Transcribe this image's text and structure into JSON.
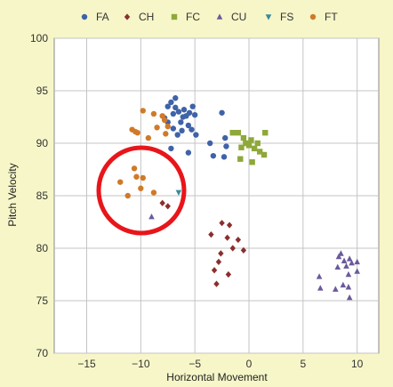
{
  "chart_data": {
    "type": "scatter",
    "title": "",
    "xlabel": "Horizontal Movement",
    "ylabel": "Pitch Velocity",
    "xlim": [
      -18,
      12
    ],
    "ylim": [
      70,
      100
    ],
    "xticks": [
      -15,
      -10,
      -5,
      0,
      5,
      10
    ],
    "yticks": [
      70,
      75,
      80,
      85,
      90,
      95,
      100
    ],
    "grid": true,
    "legend_position": "top",
    "series": [
      {
        "name": "FA",
        "marker": "circle",
        "color": "#3f62a8",
        "points": [
          [
            -7.5,
            93.5
          ],
          [
            -7.2,
            93.9
          ],
          [
            -7.0,
            92.8
          ],
          [
            -6.8,
            94.3
          ],
          [
            -6.5,
            93.0
          ],
          [
            -6.3,
            92.0
          ],
          [
            -6.0,
            93.2
          ],
          [
            -5.8,
            92.6
          ],
          [
            -5.5,
            92.9
          ],
          [
            -5.2,
            93.5
          ],
          [
            -5.0,
            92.7
          ],
          [
            -7.8,
            92.4
          ],
          [
            -7.5,
            92.0
          ],
          [
            -7.0,
            91.4
          ],
          [
            -6.2,
            91.2
          ],
          [
            -5.6,
            91.7
          ],
          [
            -5.3,
            91.3
          ],
          [
            -6.6,
            90.8
          ],
          [
            -7.2,
            89.5
          ],
          [
            -5.6,
            89.1
          ],
          [
            -2.5,
            92.9
          ],
          [
            -2.2,
            90.5
          ],
          [
            -2.1,
            89.7
          ],
          [
            -2.3,
            88.7
          ],
          [
            -3.3,
            88.8
          ],
          [
            -3.6,
            90.0
          ],
          [
            -4.9,
            90.8
          ],
          [
            -6.8,
            93.4
          ],
          [
            -6.1,
            92.5
          ]
        ]
      },
      {
        "name": "CH",
        "marker": "diamond",
        "color": "#8b2e2e",
        "points": [
          [
            -8.0,
            84.3
          ],
          [
            -7.5,
            84.0
          ],
          [
            -2.5,
            82.4
          ],
          [
            -1.8,
            82.2
          ],
          [
            -2.0,
            81.0
          ],
          [
            -3.5,
            81.3
          ],
          [
            -1.5,
            80.0
          ],
          [
            -1.0,
            80.8
          ],
          [
            -0.5,
            79.8
          ],
          [
            -2.8,
            78.7
          ],
          [
            -3.2,
            77.9
          ],
          [
            -3.0,
            76.6
          ],
          [
            -1.9,
            77.5
          ],
          [
            -2.6,
            79.5
          ]
        ]
      },
      {
        "name": "FC",
        "marker": "square",
        "color": "#8fa83a",
        "points": [
          [
            -1.5,
            91.0
          ],
          [
            -1.0,
            91.0
          ],
          [
            -0.5,
            90.5
          ],
          [
            -0.3,
            90.0
          ],
          [
            0.0,
            89.8
          ],
          [
            0.2,
            90.3
          ],
          [
            0.5,
            89.5
          ],
          [
            0.8,
            90.0
          ],
          [
            1.0,
            89.2
          ],
          [
            1.5,
            91.0
          ],
          [
            1.4,
            88.9
          ],
          [
            -0.8,
            88.5
          ],
          [
            0.3,
            88.2
          ],
          [
            -0.7,
            89.6
          ]
        ]
      },
      {
        "name": "CU",
        "marker": "triangle",
        "color": "#6b5a9a",
        "points": [
          [
            -9.0,
            83.0
          ],
          [
            6.5,
            77.3
          ],
          [
            6.6,
            76.2
          ],
          [
            8.2,
            78.2
          ],
          [
            8.5,
            79.5
          ],
          [
            8.8,
            78.8
          ],
          [
            9.0,
            78.3
          ],
          [
            9.3,
            79.0
          ],
          [
            9.2,
            77.5
          ],
          [
            9.5,
            78.6
          ],
          [
            10.0,
            78.7
          ],
          [
            10.0,
            77.8
          ],
          [
            8.0,
            76.1
          ],
          [
            8.7,
            76.5
          ],
          [
            9.2,
            76.3
          ],
          [
            9.3,
            75.3
          ],
          [
            8.3,
            79.2
          ]
        ]
      },
      {
        "name": "FS",
        "marker": "triangle-down",
        "color": "#3a8a9a",
        "points": [
          [
            -6.5,
            85.3
          ]
        ]
      },
      {
        "name": "FT",
        "marker": "circle",
        "color": "#d07a28",
        "points": [
          [
            -10.8,
            91.3
          ],
          [
            -10.5,
            91.1
          ],
          [
            -10.3,
            91.0
          ],
          [
            -9.8,
            93.1
          ],
          [
            -8.8,
            92.8
          ],
          [
            -8.5,
            91.5
          ],
          [
            -8.0,
            92.6
          ],
          [
            -7.8,
            92.2
          ],
          [
            -7.5,
            91.6
          ],
          [
            -7.7,
            90.9
          ],
          [
            -9.3,
            90.5
          ],
          [
            -10.6,
            87.6
          ],
          [
            -10.4,
            86.8
          ],
          [
            -11.9,
            86.3
          ],
          [
            -9.8,
            86.7
          ],
          [
            -11.2,
            85.0
          ],
          [
            -8.8,
            85.3
          ],
          [
            -10.0,
            85.7
          ]
        ]
      }
    ]
  }
}
